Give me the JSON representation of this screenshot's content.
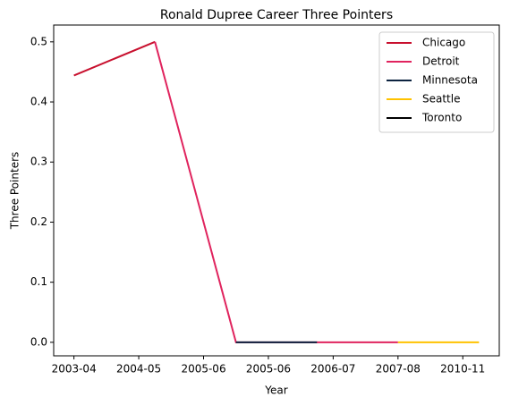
{
  "chart_data": {
    "type": "line",
    "title": "Ronald Dupree Career Three Pointers",
    "xlabel": "Year",
    "ylabel": "Three Pointers",
    "x": [
      0,
      1,
      2,
      3,
      4,
      5
    ],
    "series": [
      {
        "name": "Chicago",
        "color": "#c8102e",
        "values": [
          0.444,
          0.5,
          null,
          null,
          null,
          null
        ]
      },
      {
        "name": "Detroit",
        "color": "#e0245e",
        "values": [
          null,
          0.5,
          0,
          0,
          0,
          null
        ]
      },
      {
        "name": "Minnesota",
        "color": "#0c2340",
        "values": [
          null,
          null,
          0,
          0,
          null,
          null
        ]
      },
      {
        "name": "Seattle",
        "color": "#ffc200",
        "values": [
          null,
          null,
          null,
          null,
          0,
          0
        ]
      },
      {
        "name": "Toronto",
        "color": "#000000",
        "values": [
          null,
          null,
          null,
          null,
          null,
          0
        ]
      }
    ],
    "xlim": [
      -0.25,
      5.25
    ],
    "xticks": [
      {
        "value": 0,
        "label": "2003-04"
      },
      {
        "value": 0.8,
        "label": "2004-05"
      },
      {
        "value": 1.6,
        "label": "2005-06"
      },
      {
        "value": 2.4,
        "label": "2005-06"
      },
      {
        "value": 3.2,
        "label": "2006-07"
      },
      {
        "value": 4.0,
        "label": "2007-08"
      },
      {
        "value": 4.8,
        "label": "2010-11"
      }
    ],
    "ylim": [
      -0.0225,
      0.528
    ],
    "yticks": [
      {
        "value": 0,
        "label": "0.0"
      },
      {
        "value": 0.1,
        "label": "0.1"
      },
      {
        "value": 0.2,
        "label": "0.2"
      },
      {
        "value": 0.3,
        "label": "0.3"
      },
      {
        "value": 0.4,
        "label": "0.4"
      },
      {
        "value": 0.5,
        "label": "0.5"
      }
    ],
    "legend": "upper right"
  }
}
